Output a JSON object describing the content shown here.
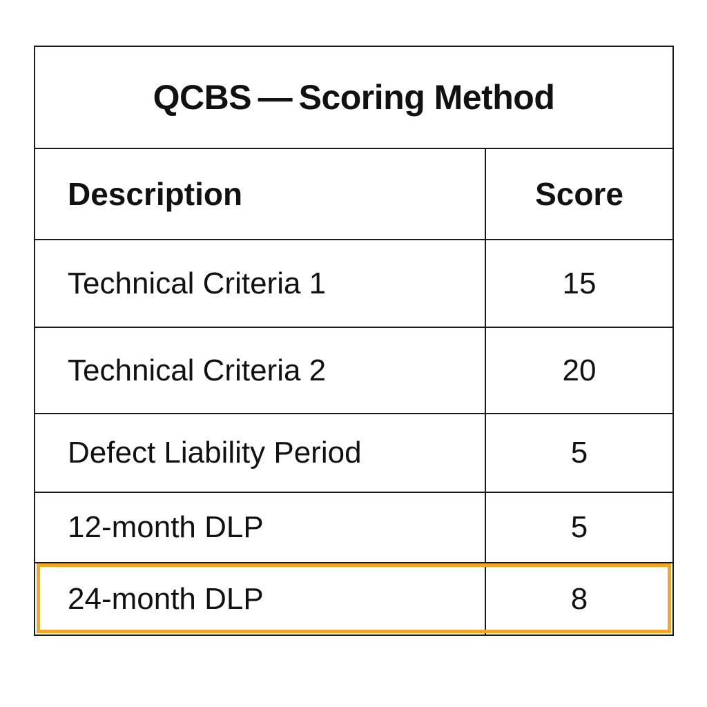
{
  "table": {
    "title": "QCBS — Scoring Method",
    "columns": {
      "description": "Description",
      "score": "Score"
    },
    "rows": [
      {
        "description": "Technical Criteria 1",
        "score": "15"
      },
      {
        "description": "Technical Criteria 2",
        "score": "20"
      },
      {
        "description": "Defect Liability Period",
        "score": "5"
      },
      {
        "description": "12-month DLP",
        "score": "5"
      },
      {
        "description": "24-month DLP",
        "score": "8"
      }
    ],
    "highlighted_row": 4,
    "highlight_color": "#f5a623",
    "border_color": "#1a1a1a"
  }
}
